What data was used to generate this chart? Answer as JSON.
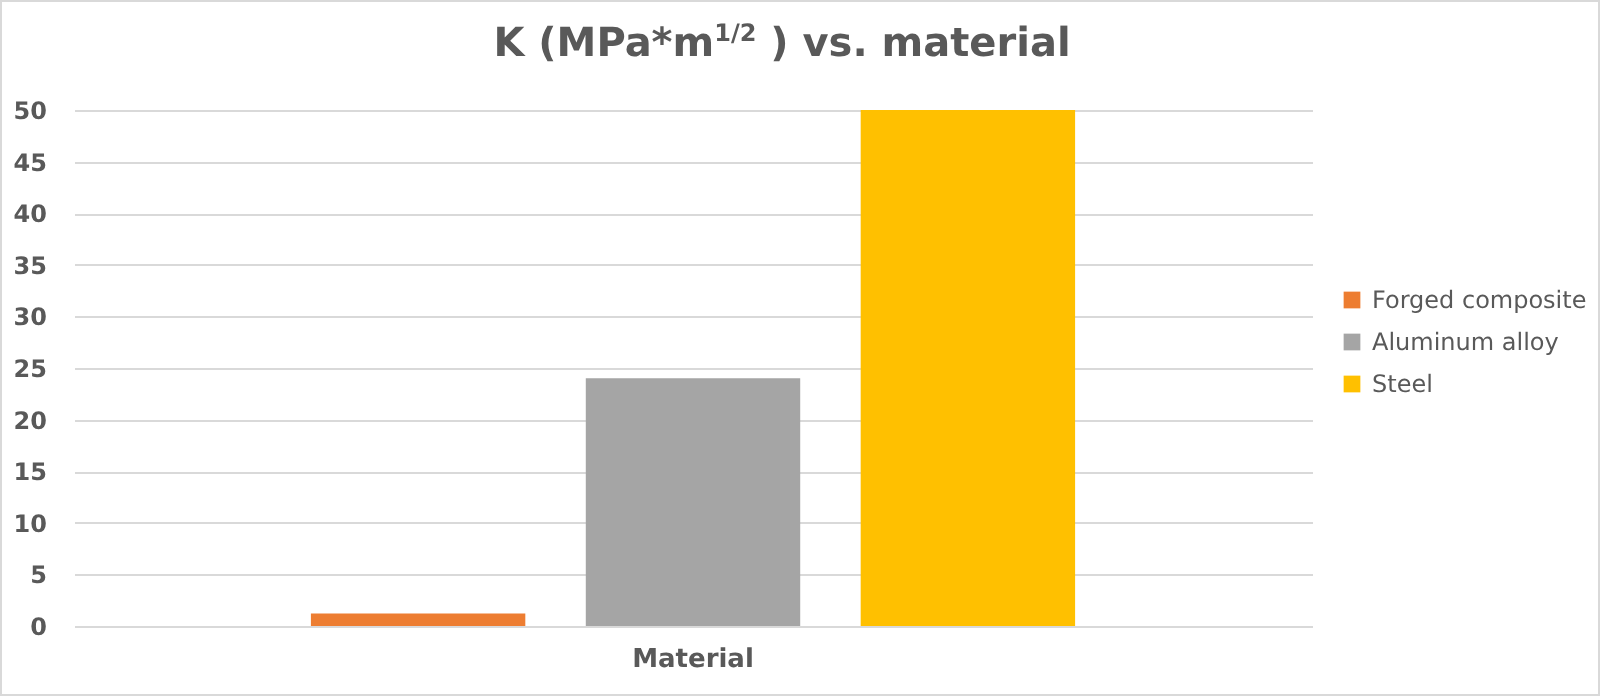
{
  "chart_data": {
    "type": "bar",
    "title": "K (MPa*m$^{1/2}$ ) vs. material",
    "categories": [
      "Material"
    ],
    "series": [
      {
        "name": "Forged composite",
        "color": "#ed7d31",
        "values": [
          1.2
        ]
      },
      {
        "name": "Aluminum alloy",
        "color": "#a5a5a5",
        "values": [
          24
        ]
      },
      {
        "name": "Steel",
        "color": "#ffc000",
        "values": [
          50
        ]
      }
    ],
    "ylim": [
      0,
      50
    ],
    "yticks": [
      0,
      5,
      10,
      15,
      20,
      25,
      30,
      35,
      40,
      45,
      50
    ],
    "grid": "y",
    "legend": "right"
  }
}
